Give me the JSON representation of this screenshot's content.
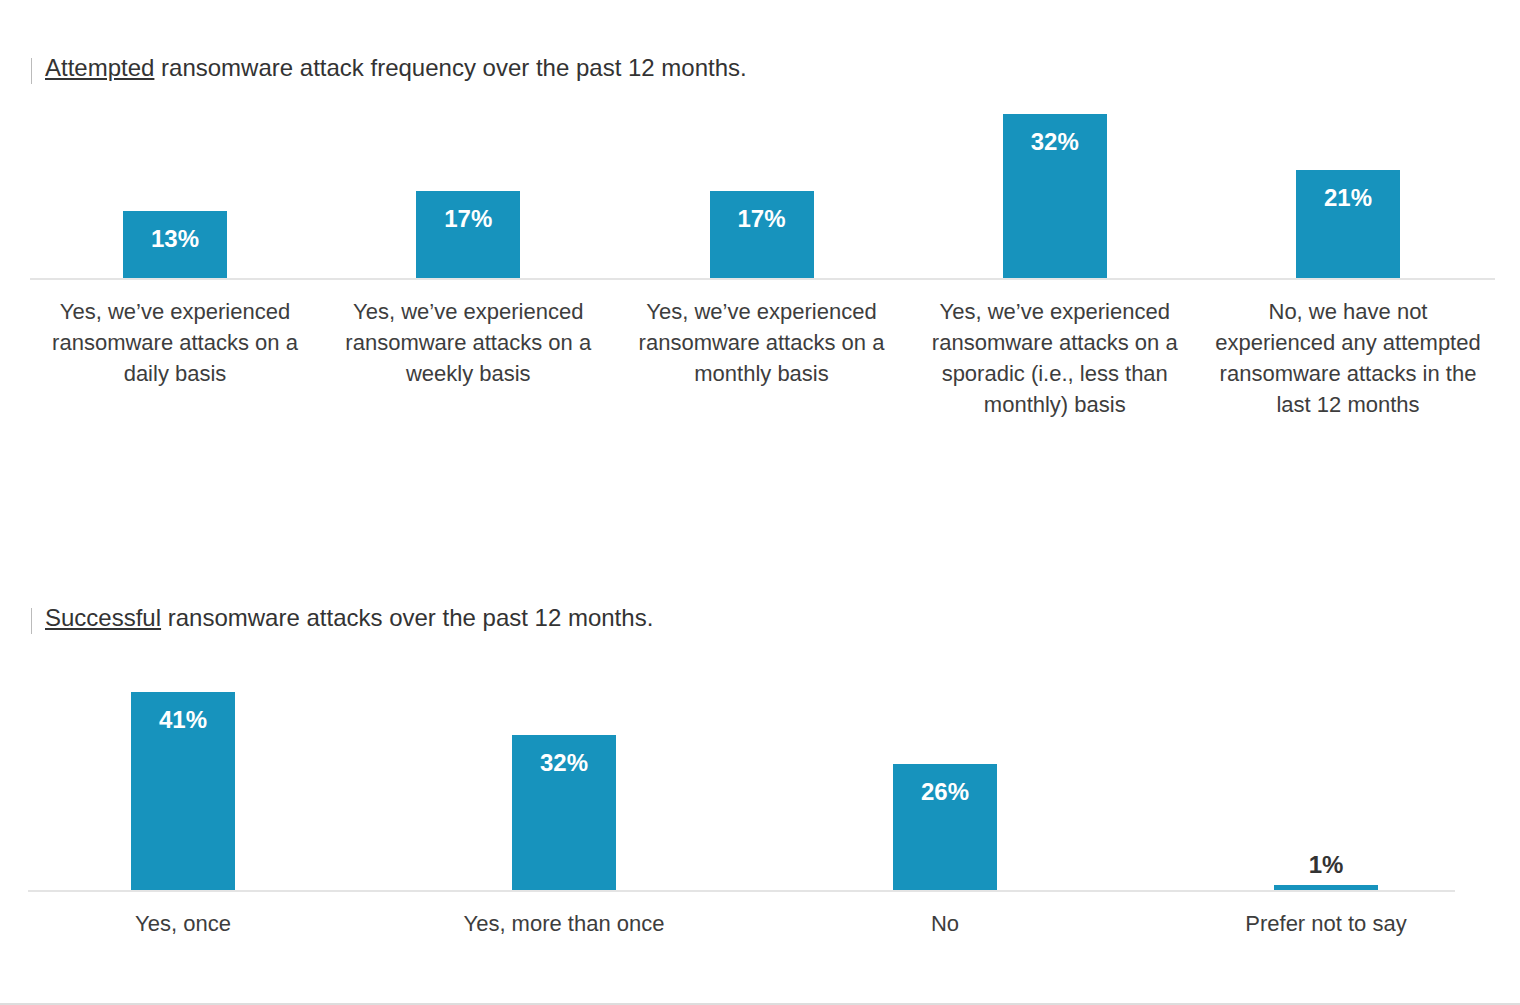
{
  "chart_data": [
    {
      "type": "bar",
      "title": "Attempted ransomware attack frequency over the past 12 months.",
      "categories": [
        "Yes, we’ve experienced ransomware attacks on a daily basis",
        "Yes, we’ve experienced ransomware attacks on a weekly basis",
        "Yes, we’ve experienced ransomware attacks on a monthly basis",
        "Yes, we’ve experienced ransomware attacks on a sporadic (i.e., less than monthly) basis",
        "No, we have not experienced any attempted ransomware attacks in the last 12 months"
      ],
      "values": [
        13,
        17,
        17,
        32,
        21
      ],
      "value_labels": [
        "13%",
        "17%",
        "17%",
        "32%",
        "21%"
      ],
      "color": "#1793bd",
      "ylim": [
        0,
        32
      ],
      "data_labels": true,
      "tick_labels": "x",
      "grid": false
    },
    {
      "type": "bar",
      "title": "Successful ransomware attacks over the past 12 months.",
      "categories": [
        "Yes, once",
        "Yes, more than once",
        "No",
        "Prefer not to say"
      ],
      "values": [
        41,
        32,
        26,
        1
      ],
      "value_labels": [
        "41%",
        "32%",
        "26%",
        "1%"
      ],
      "color": "#1793bd",
      "ylim": [
        0,
        41
      ],
      "data_labels": true,
      "tick_labels": "x",
      "grid": false
    }
  ]
}
